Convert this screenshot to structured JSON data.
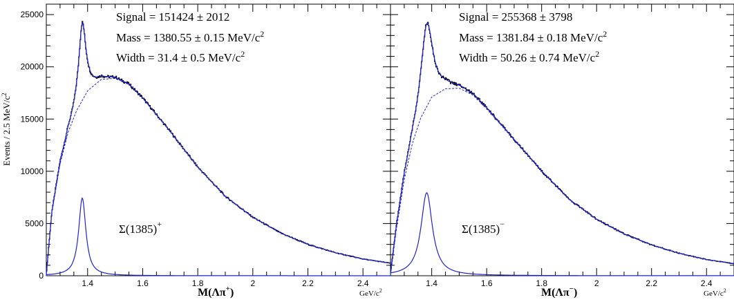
{
  "chart_data": {
    "type": "line",
    "ylabel": "Events / 2.5 MeV/c",
    "ylabel_sup": "2",
    "xunit": "GeV/c",
    "xunit_sup": "2",
    "xlim": [
      1.25,
      2.5
    ],
    "ylim": [
      0,
      26000
    ],
    "xticks": [
      1.4,
      1.6,
      1.8,
      2.0,
      2.2,
      2.4
    ],
    "xtick_labels": [
      "1.4",
      "1.6",
      "1.8",
      "2",
      "2.2",
      "2.4"
    ],
    "yticks": [
      0,
      5000,
      10000,
      15000,
      20000,
      25000
    ],
    "ytick_labels": [
      "0",
      "5000",
      "10000",
      "15000",
      "20000",
      "25000"
    ],
    "colors": {
      "data": "#000000",
      "fit": "#1f1fd6",
      "background": "#1f1fd6",
      "signal": "#1f1fd6"
    },
    "panels": [
      {
        "name": "plus",
        "xlabel_main": "M(Λπ",
        "xlabel_sup": "+",
        "xlabel_end": ")",
        "annotation_lines": [
          {
            "main": "Signal = 151424 ± 2012",
            "sup": ""
          },
          {
            "main": "Mass = 1380.55 ± 0.15 MeV/c",
            "sup": "2"
          },
          {
            "main": "Width = 31.4 ± 0.5 MeV/c",
            "sup": "2"
          }
        ],
        "particle_label": "Σ(1385)",
        "particle_sup": "+",
        "signal_mass": 1.3806,
        "signal_width": 0.0314,
        "signal_peak": 7450,
        "background": {
          "x": [
            1.25,
            1.27,
            1.3,
            1.33,
            1.36,
            1.4,
            1.45,
            1.5,
            1.55,
            1.6,
            1.7,
            1.8,
            1.9,
            2.0,
            2.1,
            2.2,
            2.3,
            2.4,
            2.5
          ],
          "y": [
            0,
            6000,
            10700,
            13800,
            15800,
            17700,
            18800,
            18900,
            18300,
            17000,
            13800,
            10400,
            7600,
            5600,
            4100,
            3000,
            2200,
            1600,
            1200
          ]
        }
      },
      {
        "name": "minus",
        "xlabel_main": "M(Λπ",
        "xlabel_sup": "−",
        "xlabel_end": ")",
        "annotation_lines": [
          {
            "main": "Signal = 255368 ± 3798",
            "sup": ""
          },
          {
            "main": "Mass = 1381.84 ± 0.18 MeV/c",
            "sup": "2"
          },
          {
            "main": "Width = 50.26 ± 0.74 MeV/c",
            "sup": "2"
          }
        ],
        "particle_label": "Σ(1385)",
        "particle_sup": "−",
        "signal_mass": 1.3818,
        "signal_width": 0.0503,
        "signal_peak": 7950,
        "background": {
          "x": [
            1.25,
            1.27,
            1.3,
            1.33,
            1.36,
            1.4,
            1.45,
            1.5,
            1.55,
            1.6,
            1.7,
            1.8,
            1.9,
            2.0,
            2.1,
            2.2,
            2.3,
            2.4,
            2.5
          ],
          "y": [
            0,
            4200,
            9200,
            12700,
            15100,
            17100,
            17900,
            17950,
            17300,
            16000,
            13000,
            10000,
            7300,
            5400,
            4000,
            2950,
            2150,
            1550,
            1150
          ]
        }
      }
    ]
  }
}
